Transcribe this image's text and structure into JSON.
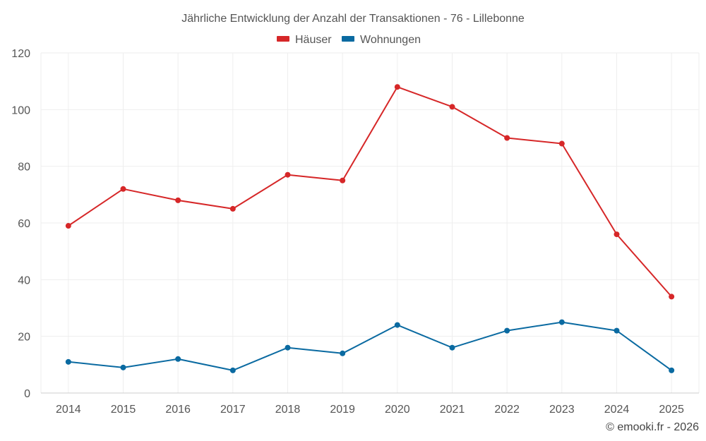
{
  "chart_data": {
    "type": "line",
    "title": "Jährliche Entwicklung der Anzahl der Transaktionen - 76 - Lillebonne",
    "categories": [
      "2014",
      "2015",
      "2016",
      "2017",
      "2018",
      "2019",
      "2020",
      "2021",
      "2022",
      "2023",
      "2024",
      "2025"
    ],
    "series": [
      {
        "name": "Häuser",
        "color": "#d62728",
        "values": [
          59,
          72,
          68,
          65,
          77,
          75,
          108,
          101,
          90,
          88,
          56,
          34
        ]
      },
      {
        "name": "Wohnungen",
        "color": "#0a6aa1",
        "values": [
          11,
          9,
          12,
          8,
          16,
          14,
          24,
          16,
          22,
          25,
          22,
          8
        ]
      }
    ],
    "ylim": [
      0,
      120
    ],
    "yticks": [
      0,
      20,
      40,
      60,
      80,
      100,
      120
    ],
    "xlabel": "",
    "ylabel": "",
    "grid": true,
    "legend": "top-center"
  },
  "credit": "© emooki.fr - 2026"
}
